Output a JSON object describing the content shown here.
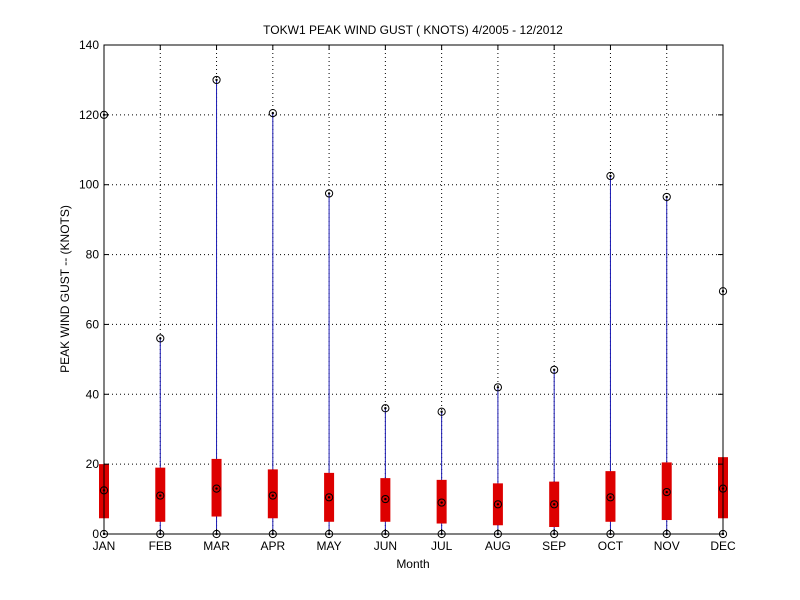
{
  "chart_data": {
    "type": "boxplot",
    "title": "TOKW1  PEAK WIND GUST ( KNOTS) 4/2005 - 12/2012",
    "xlabel": "Month",
    "ylabel": "PEAK WIND GUST -- (KNOTS)",
    "ylim": [
      0,
      140
    ],
    "yticks": [
      0,
      20,
      40,
      60,
      80,
      100,
      120,
      140
    ],
    "grid": true,
    "categories": [
      "JAN",
      "FEB",
      "MAR",
      "APR",
      "MAY",
      "JUN",
      "JUL",
      "AUG",
      "SEP",
      "OCT",
      "NOV",
      "DEC"
    ],
    "series": [
      {
        "min": [
          0,
          0,
          0,
          0,
          0,
          0,
          0,
          0,
          0,
          0,
          0,
          0
        ],
        "q1": [
          4.5,
          3.5,
          5,
          4.5,
          3.5,
          3.5,
          3,
          2.5,
          2,
          3.5,
          4,
          4.5
        ],
        "median": [
          12.5,
          11,
          13,
          11,
          10.5,
          10,
          9,
          8.5,
          8.5,
          10.5,
          12,
          13
        ],
        "q3": [
          20,
          19,
          21.5,
          18.5,
          17.5,
          16,
          15.5,
          14.5,
          15,
          18,
          20.5,
          22
        ],
        "max": [
          120,
          56,
          130,
          120.5,
          97.5,
          36,
          35,
          42,
          47,
          102.5,
          96.5,
          69.5
        ]
      }
    ],
    "colors": {
      "whisker": "#1c1cb4",
      "box": "#dd0000",
      "marker": "#000000",
      "grid": "#000000"
    }
  }
}
